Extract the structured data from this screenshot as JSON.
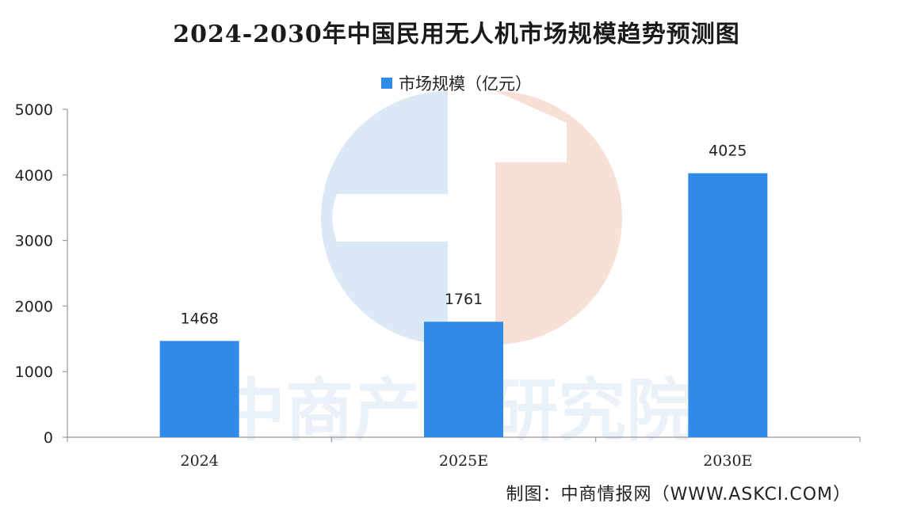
{
  "chart_data": {
    "type": "bar",
    "title": "2024-2030年中国民用无人机市场规模趋势预测图",
    "categories": [
      "2024",
      "2025E",
      "2030E"
    ],
    "series": [
      {
        "name": "市场规模（亿元）",
        "values": [
          1468,
          1761,
          4025
        ],
        "color": "#2f8ae8"
      }
    ],
    "data_labels": [
      "1468",
      "1761",
      "4025"
    ],
    "y_ticks": [
      "0",
      "1000",
      "2000",
      "3000",
      "4000",
      "5000"
    ],
    "ylim": [
      0,
      5000
    ],
    "grid": false,
    "legend_position": "top-center"
  },
  "source": "制图：中商情报网（WWW.ASKCI.COM）",
  "watermark": {
    "text": "中商产业研究院",
    "colors": {
      "blue": "#cfe0f2",
      "orange": "#f7d6c8"
    }
  }
}
